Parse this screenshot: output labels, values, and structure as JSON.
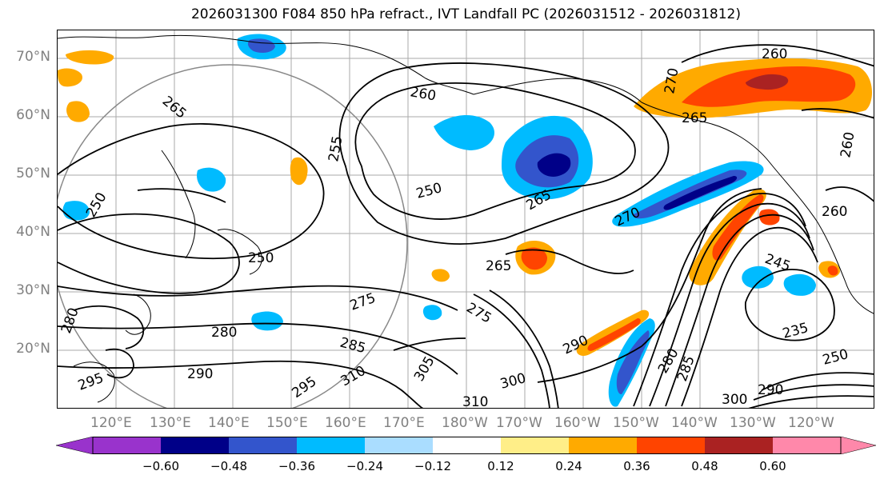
{
  "title": "2026031300 F084 850 hPa refract., IVT Landfall PC (2026031512 - 2026031812)",
  "map": {
    "lat_labels": [
      "70°N",
      "60°N",
      "50°N",
      "40°N",
      "30°N",
      "20°N"
    ],
    "lon_labels": [
      "120°E",
      "130°E",
      "140°E",
      "150°E",
      "160°E",
      "170°E",
      "180°W",
      "170°W",
      "160°W",
      "150°W",
      "140°W",
      "130°W",
      "120°W"
    ],
    "extent": {
      "lon_min": 110,
      "lon_max": 250,
      "lat_min": 10,
      "lat_max": 75
    },
    "contour_labels": [
      "265",
      "260",
      "270",
      "260",
      "260",
      "265",
      "250",
      "265",
      "270",
      "265",
      "250",
      "250",
      "255",
      "275",
      "280",
      "285",
      "290",
      "295",
      "310",
      "305",
      "300",
      "310",
      "290",
      "285",
      "280",
      "275",
      "260",
      "245",
      "235",
      "250",
      "290",
      "300",
      "295",
      "280"
    ],
    "shading_colors": {
      "violet": "#9933cc",
      "navy": "#000088",
      "royal": "#3355cc",
      "sky": "#00bbff",
      "light_blue": "#aaddff",
      "white": "#ffffff",
      "light_yellow": "#ffee88",
      "orange": "#ffaa00",
      "red_orange": "#ff4400",
      "dark_red": "#aa2222",
      "pink": "#ff88aa"
    }
  },
  "colorbar": {
    "ticks": [
      "−0.60",
      "−0.48",
      "−0.36",
      "−0.24",
      "−0.12",
      "0.12",
      "0.24",
      "0.36",
      "0.48",
      "0.60"
    ],
    "colors": [
      "#9933cc",
      "#000088",
      "#3355cc",
      "#00bbff",
      "#aaddff",
      "#ffffff",
      "#ffee88",
      "#ffaa00",
      "#ff4400",
      "#aa2222",
      "#ff88aa"
    ]
  }
}
